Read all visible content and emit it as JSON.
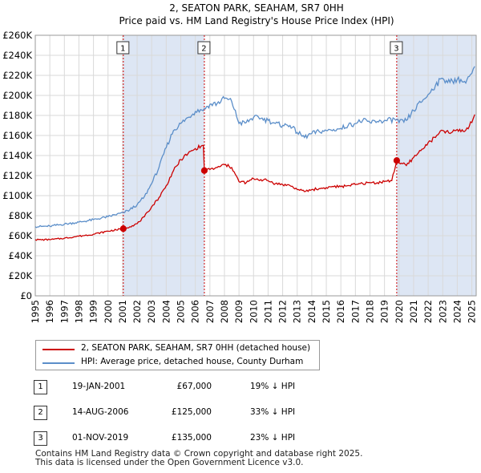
{
  "chart_data": {
    "type": "line",
    "title": "2, SEATON PARK, SEAHAM, SR7 0HH",
    "subtitle": "Price paid vs. HM Land Registry's House Price Index (HPI)",
    "ylim": [
      0,
      260000
    ],
    "xlim": [
      1995,
      2025.3
    ],
    "y_ticks": [
      0,
      20000,
      40000,
      60000,
      80000,
      100000,
      120000,
      140000,
      160000,
      180000,
      200000,
      220000,
      240000,
      260000
    ],
    "y_tick_labels": [
      "£0",
      "£20K",
      "£40K",
      "£60K",
      "£80K",
      "£100K",
      "£120K",
      "£140K",
      "£160K",
      "£180K",
      "£200K",
      "£220K",
      "£240K",
      "£260K"
    ],
    "x_ticks": [
      1995,
      1996,
      1997,
      1998,
      1999,
      2000,
      2001,
      2002,
      2003,
      2004,
      2005,
      2006,
      2007,
      2008,
      2009,
      2010,
      2011,
      2012,
      2013,
      2014,
      2015,
      2016,
      2017,
      2018,
      2019,
      2020,
      2021,
      2022,
      2023,
      2024,
      2025
    ],
    "x_tick_labels": [
      "1995",
      "1996",
      "1997",
      "1998",
      "1999",
      "2000",
      "2001",
      "2002",
      "2003",
      "2004",
      "2005",
      "2006",
      "2007",
      "2008",
      "2009",
      "2010",
      "2011",
      "2012",
      "2013",
      "2014",
      "2015",
      "2016",
      "2017",
      "2018",
      "2019",
      "2020",
      "2021",
      "2022",
      "2023",
      "2024",
      "2025"
    ],
    "grid": true,
    "series": [
      {
        "name": "2, SEATON PARK, SEAHAM, SR7 0HH (detached house)",
        "color": "#cc0000",
        "points": [
          [
            1995.0,
            56000
          ],
          [
            1996.0,
            56000
          ],
          [
            1997.0,
            57500
          ],
          [
            1998.0,
            59500
          ],
          [
            1999.0,
            61500
          ],
          [
            2000.0,
            64500
          ],
          [
            2001.05,
            67000
          ],
          [
            2001.5,
            69000
          ],
          [
            2002.0,
            72000
          ],
          [
            2002.5,
            79000
          ],
          [
            2003.0,
            89000
          ],
          [
            2003.5,
            98000
          ],
          [
            2004.0,
            110000
          ],
          [
            2004.5,
            125000
          ],
          [
            2005.0,
            136000
          ],
          [
            2005.5,
            142000
          ],
          [
            2006.0,
            147000
          ],
          [
            2006.55,
            150000
          ],
          [
            2006.62,
            125000
          ],
          [
            2007.0,
            126000
          ],
          [
            2007.5,
            128000
          ],
          [
            2008.0,
            131000
          ],
          [
            2008.5,
            128000
          ],
          [
            2009.0,
            114000
          ],
          [
            2009.5,
            113000
          ],
          [
            2010.0,
            117000
          ],
          [
            2010.5,
            116000
          ],
          [
            2011.0,
            115000
          ],
          [
            2011.5,
            112000
          ],
          [
            2012.0,
            111000
          ],
          [
            2012.5,
            110000
          ],
          [
            2013.0,
            106000
          ],
          [
            2013.5,
            104000
          ],
          [
            2014.0,
            106000
          ],
          [
            2014.5,
            107000
          ],
          [
            2015.0,
            108000
          ],
          [
            2015.5,
            109000
          ],
          [
            2016.0,
            109000
          ],
          [
            2016.5,
            110000
          ],
          [
            2017.0,
            111000
          ],
          [
            2017.5,
            112000
          ],
          [
            2018.0,
            113000
          ],
          [
            2018.5,
            113000
          ],
          [
            2019.0,
            114000
          ],
          [
            2019.5,
            115000
          ],
          [
            2019.84,
            135000
          ],
          [
            2020.0,
            133000
          ],
          [
            2020.5,
            130000
          ],
          [
            2021.0,
            138000
          ],
          [
            2021.5,
            145000
          ],
          [
            2022.0,
            153000
          ],
          [
            2022.5,
            158000
          ],
          [
            2023.0,
            165000
          ],
          [
            2023.5,
            162000
          ],
          [
            2024.0,
            166000
          ],
          [
            2024.5,
            164000
          ],
          [
            2025.0,
            173000
          ],
          [
            2025.2,
            181000
          ]
        ]
      },
      {
        "name": "HPI: Average price, detached house, County Durham",
        "color": "#5b8ec9",
        "points": [
          [
            1995.0,
            69000
          ],
          [
            1996.0,
            69500
          ],
          [
            1997.0,
            71500
          ],
          [
            1998.0,
            73500
          ],
          [
            1999.0,
            76000
          ],
          [
            2000.0,
            79000
          ],
          [
            2001.05,
            83000
          ],
          [
            2001.5,
            86000
          ],
          [
            2002.0,
            91000
          ],
          [
            2002.5,
            99000
          ],
          [
            2003.0,
            112000
          ],
          [
            2003.5,
            128000
          ],
          [
            2004.0,
            148000
          ],
          [
            2004.5,
            165000
          ],
          [
            2005.0,
            172000
          ],
          [
            2005.5,
            178000
          ],
          [
            2006.0,
            184000
          ],
          [
            2006.62,
            187000
          ],
          [
            2007.0,
            191000
          ],
          [
            2007.5,
            192000
          ],
          [
            2008.0,
            197000
          ],
          [
            2008.5,
            194000
          ],
          [
            2009.0,
            172000
          ],
          [
            2009.5,
            173000
          ],
          [
            2010.0,
            178000
          ],
          [
            2010.5,
            177000
          ],
          [
            2011.0,
            175000
          ],
          [
            2011.5,
            172000
          ],
          [
            2012.0,
            170000
          ],
          [
            2012.5,
            170000
          ],
          [
            2013.0,
            163000
          ],
          [
            2013.5,
            158000
          ],
          [
            2014.0,
            162000
          ],
          [
            2014.5,
            164000
          ],
          [
            2015.0,
            165000
          ],
          [
            2015.5,
            166000
          ],
          [
            2016.0,
            167000
          ],
          [
            2016.5,
            170000
          ],
          [
            2017.0,
            172000
          ],
          [
            2017.5,
            175000
          ],
          [
            2018.0,
            173000
          ],
          [
            2018.5,
            174000
          ],
          [
            2019.0,
            175000
          ],
          [
            2019.84,
            176000
          ],
          [
            2020.0,
            173000
          ],
          [
            2020.5,
            175000
          ],
          [
            2021.0,
            185000
          ],
          [
            2021.5,
            193000
          ],
          [
            2022.0,
            201000
          ],
          [
            2022.5,
            210000
          ],
          [
            2023.0,
            217000
          ],
          [
            2023.5,
            213000
          ],
          [
            2024.0,
            216000
          ],
          [
            2024.5,
            214000
          ],
          [
            2025.0,
            222000
          ],
          [
            2025.2,
            229000
          ]
        ]
      }
    ],
    "transactions": [
      {
        "num": "1",
        "x": 2001.05,
        "price": 67000
      },
      {
        "num": "2",
        "x": 2006.62,
        "price": 125000
      },
      {
        "num": "3",
        "x": 2019.84,
        "price": 135000
      }
    ],
    "shaded_periods": [
      [
        2001.05,
        2006.62
      ],
      [
        2019.84,
        2025.3
      ]
    ],
    "colors": {
      "property": "#cc0000",
      "hpi": "#5b8ec9",
      "shade": "#dde6f4",
      "vline": "#cc0000",
      "grid": "#d9d9d9",
      "marker": "#cc0000"
    }
  },
  "legend": {
    "property_label": "2, SEATON PARK, SEAHAM, SR7 0HH (detached house)",
    "hpi_label": "HPI: Average price, detached house, County Durham"
  },
  "table": {
    "rows": [
      {
        "num": "1",
        "date": "19-JAN-2001",
        "price": "£67,000",
        "hpi": "19% ↓ HPI"
      },
      {
        "num": "2",
        "date": "14-AUG-2006",
        "price": "£125,000",
        "hpi": "33% ↓ HPI"
      },
      {
        "num": "3",
        "date": "01-NOV-2019",
        "price": "£135,000",
        "hpi": "23% ↓ HPI"
      }
    ]
  },
  "footer": {
    "line1": "Contains HM Land Registry data © Crown copyright and database right 2025.",
    "line2": "This data is licensed under the Open Government Licence v3.0."
  }
}
